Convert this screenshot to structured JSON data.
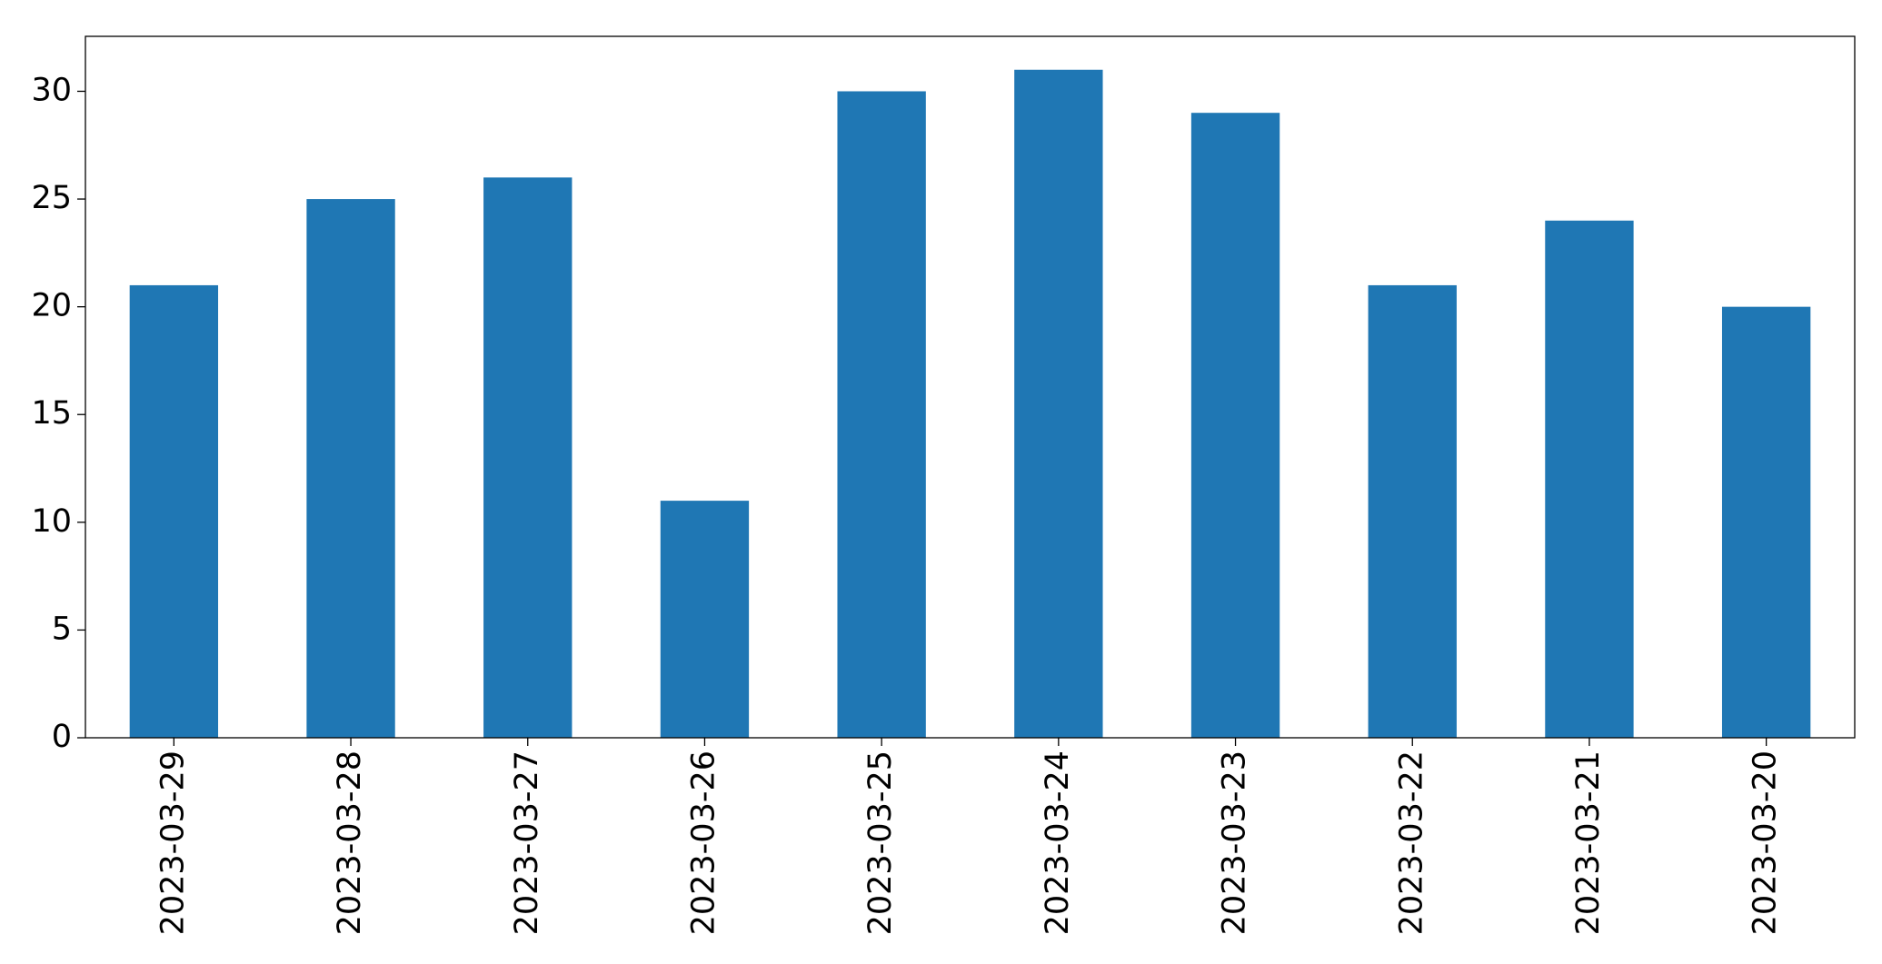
{
  "chart_data": {
    "type": "bar",
    "categories": [
      "2023-03-29",
      "2023-03-28",
      "2023-03-27",
      "2023-03-26",
      "2023-03-25",
      "2023-03-24",
      "2023-03-23",
      "2023-03-22",
      "2023-03-21",
      "2023-03-20"
    ],
    "values": [
      21,
      25,
      26,
      11,
      30,
      31,
      29,
      21,
      24,
      20
    ],
    "color": "#1f77b4",
    "ylim": [
      0,
      32.55
    ],
    "yticks": [
      0,
      5,
      10,
      15,
      20,
      25,
      30
    ],
    "grid": false
  }
}
